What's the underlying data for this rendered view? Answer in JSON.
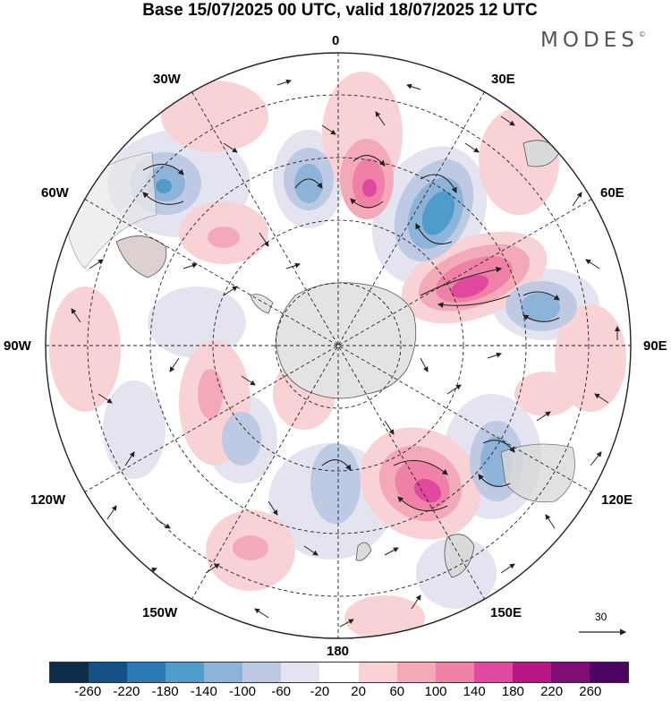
{
  "title": "Base 15/07/2025 00 UTC, valid 18/07/2025 12 UTC",
  "brand": "MODES",
  "brand_mark": "©",
  "longitude_labels": {
    "top": "0",
    "bottom": "180",
    "left": "90W",
    "right": "90E",
    "upper_left_30": "30W",
    "upper_right_30": "30E",
    "upper_left_60": "60W",
    "upper_right_60": "60E",
    "lower_left_120": "120W",
    "lower_right_120": "120E",
    "lower_left_150": "150W",
    "lower_right_150": "150E"
  },
  "reference_vector": {
    "value": "30"
  },
  "colorbar": {
    "colors": [
      "#0d2c4a",
      "#144f85",
      "#2a79b4",
      "#4f9cca",
      "#8eb3d8",
      "#bec9e3",
      "#e4e4f1",
      "#ffffff",
      "#f8d2d5",
      "#f4a9b8",
      "#ef80a6",
      "#e1489f",
      "#b81684",
      "#7e0e74",
      "#4b0462"
    ],
    "tick_labels": [
      "-260",
      "-220",
      "-180",
      "-140",
      "-100",
      "-60",
      "-20",
      "20",
      "60",
      "100",
      "140",
      "180",
      "220",
      "260"
    ]
  }
}
